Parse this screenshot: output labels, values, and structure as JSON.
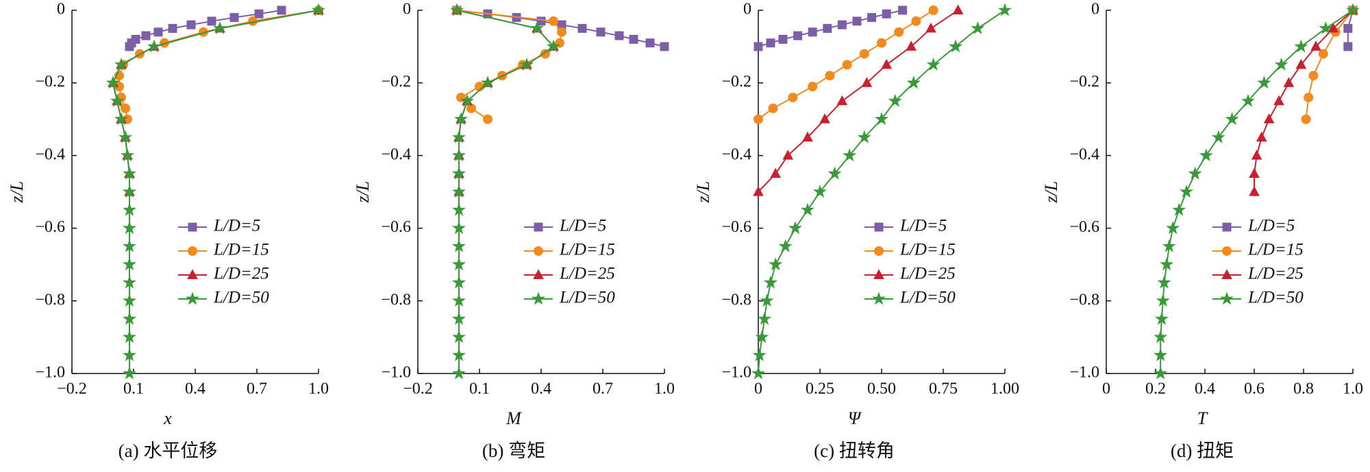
{
  "chart_data": [
    {
      "type": "line",
      "xlabel": "x",
      "ylabel": "z/L",
      "caption": "(a) 水平位移",
      "xlim": [
        -0.2,
        1.0
      ],
      "xticks": [
        {
          "value": -0.2,
          "label": "−0.2"
        },
        0.1,
        0.4,
        0.7,
        {
          "value": 1.0,
          "label": "1.0"
        }
      ],
      "ylim": [
        -1.0,
        0
      ],
      "yticks": [
        0,
        {
          "value": -0.2,
          "label": "−0.2"
        },
        {
          "value": -0.4,
          "label": "−0.4"
        },
        {
          "value": -0.6,
          "label": "−0.6"
        },
        {
          "value": -0.8,
          "label": "−0.8"
        },
        {
          "value": -1.0,
          "label": "−1.0"
        }
      ],
      "legend": "right",
      "series": [
        {
          "name": "L/D=5",
          "color": "#7b5ea7",
          "marker": "square",
          "x": [
            0.82,
            0.71,
            0.59,
            0.48,
            0.38,
            0.29,
            0.22,
            0.16,
            0.11,
            0.09,
            0.08
          ],
          "values": [
            0,
            -0.01,
            -0.02,
            -0.03,
            -0.04,
            -0.05,
            -0.06,
            -0.07,
            -0.08,
            -0.09,
            -0.1
          ]
        },
        {
          "name": "L/D=15",
          "color": "#f28a1e",
          "marker": "circle",
          "x": [
            1.0,
            0.68,
            0.44,
            0.25,
            0.13,
            0.05,
            0.03,
            0.03,
            0.04,
            0.06,
            0.07
          ],
          "values": [
            0,
            -0.03,
            -0.06,
            -0.09,
            -0.12,
            -0.15,
            -0.18,
            -0.21,
            -0.24,
            -0.27,
            -0.3
          ]
        },
        {
          "name": "L/D=25",
          "color": "#c8202f",
          "marker": "triangle",
          "x": [
            1.0,
            0.52,
            0.2,
            0.04,
            0.0,
            0.02,
            0.04,
            0.06,
            0.07,
            0.08,
            0.08
          ],
          "values": [
            0,
            -0.05,
            -0.1,
            -0.15,
            -0.2,
            -0.25,
            -0.3,
            -0.35,
            -0.4,
            -0.45,
            -0.5
          ]
        },
        {
          "name": "L/D=50",
          "color": "#3a9a3a",
          "marker": "star",
          "x": [
            1.0,
            0.52,
            0.2,
            0.04,
            0.0,
            0.02,
            0.04,
            0.06,
            0.07,
            0.08,
            0.08,
            0.08,
            0.08,
            0.08,
            0.08,
            0.08,
            0.08,
            0.08,
            0.08,
            0.08,
            0.08
          ],
          "values": [
            0,
            -0.05,
            -0.1,
            -0.15,
            -0.2,
            -0.25,
            -0.3,
            -0.35,
            -0.4,
            -0.45,
            -0.5,
            -0.55,
            -0.6,
            -0.65,
            -0.7,
            -0.75,
            -0.8,
            -0.85,
            -0.9,
            -0.95,
            -1.0
          ]
        }
      ]
    },
    {
      "type": "line",
      "xlabel": "M",
      "ylabel": "z/L",
      "caption": "(b) 弯矩",
      "xlim": [
        -0.2,
        1.0
      ],
      "xticks": [
        {
          "value": -0.2,
          "label": "−0.2"
        },
        0.1,
        0.4,
        0.7,
        {
          "value": 1.0,
          "label": "1.0"
        }
      ],
      "ylim": [
        -1.0,
        0
      ],
      "yticks": [
        0,
        {
          "value": -0.2,
          "label": "−0.2"
        },
        {
          "value": -0.4,
          "label": "−0.4"
        },
        {
          "value": -0.6,
          "label": "−0.6"
        },
        {
          "value": -0.8,
          "label": "−0.8"
        },
        {
          "value": -1.0,
          "label": "−1.0"
        }
      ],
      "legend": "right",
      "series": [
        {
          "name": "L/D=5",
          "color": "#7b5ea7",
          "marker": "square",
          "x": [
            -0.01,
            0.14,
            0.28,
            0.4,
            0.5,
            0.6,
            0.69,
            0.78,
            0.85,
            0.93,
            1.0
          ],
          "values": [
            0,
            -0.01,
            -0.02,
            -0.03,
            -0.04,
            -0.05,
            -0.06,
            -0.07,
            -0.08,
            -0.09,
            -0.1
          ]
        },
        {
          "name": "L/D=15",
          "color": "#f28a1e",
          "marker": "circle",
          "x": [
            -0.01,
            0.46,
            0.5,
            0.49,
            0.42,
            0.31,
            0.21,
            0.1,
            0.01,
            0.06,
            0.14
          ],
          "values": [
            0,
            -0.03,
            -0.06,
            -0.09,
            -0.12,
            -0.15,
            -0.18,
            -0.21,
            -0.24,
            -0.27,
            -0.3
          ]
        },
        {
          "name": "L/D=25",
          "color": "#c8202f",
          "marker": "triangle",
          "x": [
            -0.01,
            0.38,
            0.46,
            0.33,
            0.14,
            0.04,
            0.01,
            0.0,
            0.0,
            0.0,
            0.0
          ],
          "values": [
            0,
            -0.05,
            -0.1,
            -0.15,
            -0.2,
            -0.25,
            -0.3,
            -0.35,
            -0.4,
            -0.45,
            -0.5
          ]
        },
        {
          "name": "L/D=50",
          "color": "#3a9a3a",
          "marker": "star",
          "x": [
            -0.01,
            0.38,
            0.46,
            0.33,
            0.14,
            0.04,
            0.01,
            0.0,
            0.0,
            0.0,
            0.0,
            0.0,
            0.0,
            0.0,
            0.0,
            0.0,
            0.0,
            0.0,
            0.0,
            0.0,
            0.0
          ],
          "values": [
            0,
            -0.05,
            -0.1,
            -0.15,
            -0.2,
            -0.25,
            -0.3,
            -0.35,
            -0.4,
            -0.45,
            -0.5,
            -0.55,
            -0.6,
            -0.65,
            -0.7,
            -0.75,
            -0.8,
            -0.85,
            -0.9,
            -0.95,
            -1.0
          ]
        }
      ]
    },
    {
      "type": "line",
      "xlabel": "Ψ",
      "ylabel": "z/L",
      "caption": "(c) 扭转角",
      "xlim": [
        0,
        1.0
      ],
      "xticks": [
        0,
        0.25,
        {
          "value": 0.5,
          "label": "0.50"
        },
        0.75,
        {
          "value": 1.0,
          "label": "1.00"
        }
      ],
      "ylim": [
        -1.0,
        0
      ],
      "yticks": [
        0,
        {
          "value": -0.2,
          "label": "−0.2"
        },
        {
          "value": -0.4,
          "label": "−0.4"
        },
        {
          "value": -0.6,
          "label": "−0.6"
        },
        {
          "value": -0.8,
          "label": "−0.8"
        },
        {
          "value": -1.0,
          "label": "−1.0"
        }
      ],
      "legend": "right",
      "series": [
        {
          "name": "L/D=5",
          "color": "#7b5ea7",
          "marker": "square",
          "x": [
            0.585,
            0.52,
            0.46,
            0.4,
            0.34,
            0.28,
            0.22,
            0.16,
            0.1,
            0.05,
            0.0
          ],
          "values": [
            0,
            -0.01,
            -0.02,
            -0.03,
            -0.04,
            -0.05,
            -0.06,
            -0.07,
            -0.08,
            -0.09,
            -0.1
          ]
        },
        {
          "name": "L/D=15",
          "color": "#f28a1e",
          "marker": "circle",
          "x": [
            0.71,
            0.64,
            0.57,
            0.5,
            0.43,
            0.36,
            0.29,
            0.22,
            0.14,
            0.06,
            0.0
          ],
          "values": [
            0,
            -0.03,
            -0.06,
            -0.09,
            -0.12,
            -0.15,
            -0.18,
            -0.21,
            -0.24,
            -0.27,
            -0.3
          ]
        },
        {
          "name": "L/D=25",
          "color": "#c8202f",
          "marker": "triangle",
          "x": [
            0.81,
            0.7,
            0.62,
            0.52,
            0.44,
            0.34,
            0.27,
            0.2,
            0.12,
            0.07,
            0.0
          ],
          "values": [
            0,
            -0.05,
            -0.1,
            -0.15,
            -0.2,
            -0.25,
            -0.3,
            -0.35,
            -0.4,
            -0.45,
            -0.5
          ]
        },
        {
          "name": "L/D=50",
          "color": "#3a9a3a",
          "marker": "star",
          "x": [
            1.0,
            0.89,
            0.8,
            0.71,
            0.63,
            0.555,
            0.5,
            0.43,
            0.37,
            0.31,
            0.25,
            0.2,
            0.15,
            0.11,
            0.07,
            0.05,
            0.035,
            0.025,
            0.015,
            0.005,
            0.0
          ],
          "values": [
            0,
            -0.05,
            -0.1,
            -0.15,
            -0.2,
            -0.25,
            -0.3,
            -0.35,
            -0.4,
            -0.45,
            -0.5,
            -0.55,
            -0.6,
            -0.65,
            -0.7,
            -0.75,
            -0.8,
            -0.85,
            -0.9,
            -0.95,
            -1.0
          ]
        }
      ]
    },
    {
      "type": "line",
      "xlabel": "T",
      "ylabel": "z/L",
      "caption": "(d) 扭矩",
      "xlim": [
        0,
        1.0
      ],
      "xticks": [
        0,
        0.2,
        0.4,
        0.6,
        0.8,
        {
          "value": 1.0,
          "label": "1.0"
        }
      ],
      "ylim": [
        -1.0,
        0
      ],
      "yticks": [
        0,
        {
          "value": -0.2,
          "label": "−0.2"
        },
        {
          "value": -0.4,
          "label": "−0.4"
        },
        {
          "value": -0.6,
          "label": "−0.6"
        },
        {
          "value": -0.8,
          "label": "−0.8"
        },
        {
          "value": -1.0,
          "label": "−1.0"
        }
      ],
      "legend": "right",
      "series": [
        {
          "name": "L/D=5",
          "color": "#7b5ea7",
          "marker": "square",
          "x": [
            1.0,
            0.98,
            0.98
          ],
          "values": [
            0,
            -0.05,
            -0.1
          ]
        },
        {
          "name": "L/D=15",
          "color": "#f28a1e",
          "marker": "circle",
          "x": [
            1.0,
            0.93,
            0.88,
            0.84,
            0.82,
            0.81
          ],
          "values": [
            0,
            -0.06,
            -0.12,
            -0.18,
            -0.24,
            -0.3
          ]
        },
        {
          "name": "L/D=25",
          "color": "#c8202f",
          "marker": "triangle",
          "x": [
            1.0,
            0.92,
            0.85,
            0.79,
            0.74,
            0.7,
            0.66,
            0.63,
            0.61,
            0.6,
            0.6
          ],
          "values": [
            0,
            -0.05,
            -0.1,
            -0.15,
            -0.2,
            -0.25,
            -0.3,
            -0.35,
            -0.4,
            -0.45,
            -0.5
          ]
        },
        {
          "name": "L/D=50",
          "color": "#3a9a3a",
          "marker": "star",
          "x": [
            1.0,
            0.89,
            0.79,
            0.71,
            0.64,
            0.575,
            0.51,
            0.455,
            0.405,
            0.36,
            0.325,
            0.295,
            0.27,
            0.255,
            0.245,
            0.235,
            0.23,
            0.225,
            0.22,
            0.22,
            0.22
          ],
          "values": [
            0,
            -0.05,
            -0.1,
            -0.15,
            -0.2,
            -0.25,
            -0.3,
            -0.35,
            -0.4,
            -0.45,
            -0.5,
            -0.55,
            -0.6,
            -0.65,
            -0.7,
            -0.75,
            -0.8,
            -0.85,
            -0.9,
            -0.95,
            -1.0
          ]
        }
      ]
    }
  ]
}
